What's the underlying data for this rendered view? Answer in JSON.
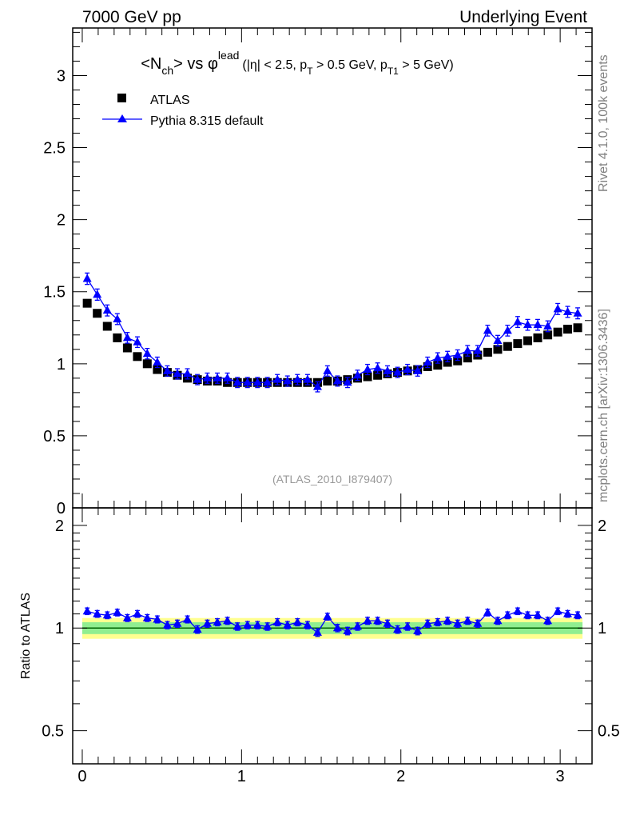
{
  "header": {
    "left": "7000 GeV pp",
    "right": "Underlying Event"
  },
  "side_text": {
    "rivet": "Rivet 4.1.0,  100k events",
    "mcplots": "mcplots.cern.ch [arXiv:1306.3436]"
  },
  "analysis_tag": "(ATLAS_2010_I879407)",
  "colors": {
    "pythia": "#0000ff",
    "atlas": "#000000",
    "band_stat": "#90ee90",
    "band_syst": "#ffff90",
    "ratio_line": "#006400"
  },
  "chart_data": [
    {
      "type": "scatter",
      "panel": "main",
      "title": {
        "lhs": "<N",
        "sub1": "ch",
        "mid": "> vs ",
        "phi": "φ",
        "sup": "lead",
        "cuts": "(|η| < 2.5, p",
        "sub2": "T",
        "cut2": " > 0.5 GeV, p",
        "sub3": "T1",
        "cut3": " > 5 GeV)"
      },
      "legend": [
        {
          "label": "ATLAS",
          "marker": "square"
        },
        {
          "label": "Pythia 8.315 default",
          "marker": "triangle-line"
        }
      ],
      "legend_position": "top-left",
      "xlim": [
        -0.06,
        3.2
      ],
      "ylim": [
        0,
        3.33
      ],
      "yticks": [
        0,
        0.5,
        1,
        1.5,
        2,
        2.5,
        3
      ],
      "ytick_labels": [
        "0",
        "0.5",
        "1",
        "1.5",
        "2",
        "2.5",
        "3"
      ],
      "x": [
        0.031,
        0.094,
        0.157,
        0.22,
        0.283,
        0.346,
        0.408,
        0.471,
        0.534,
        0.597,
        0.66,
        0.723,
        0.785,
        0.848,
        0.911,
        0.974,
        1.037,
        1.1,
        1.162,
        1.225,
        1.288,
        1.351,
        1.414,
        1.477,
        1.539,
        1.602,
        1.665,
        1.728,
        1.791,
        1.854,
        1.916,
        1.979,
        2.042,
        2.105,
        2.168,
        2.231,
        2.293,
        2.356,
        2.419,
        2.482,
        2.545,
        2.608,
        2.67,
        2.733,
        2.796,
        2.859,
        2.922,
        2.985,
        3.047,
        3.11
      ],
      "series": [
        {
          "name": "ATLAS",
          "values": [
            1.42,
            1.35,
            1.26,
            1.18,
            1.11,
            1.05,
            1.0,
            0.96,
            0.94,
            0.92,
            0.9,
            0.89,
            0.88,
            0.88,
            0.87,
            0.87,
            0.87,
            0.87,
            0.87,
            0.87,
            0.87,
            0.87,
            0.87,
            0.87,
            0.88,
            0.88,
            0.89,
            0.9,
            0.91,
            0.92,
            0.93,
            0.94,
            0.95,
            0.96,
            0.98,
            0.99,
            1.01,
            1.02,
            1.04,
            1.06,
            1.08,
            1.1,
            1.12,
            1.14,
            1.16,
            1.18,
            1.2,
            1.22,
            1.24,
            1.25
          ]
        },
        {
          "name": "Pythia 8.315 default",
          "values": [
            1.59,
            1.48,
            1.37,
            1.31,
            1.18,
            1.15,
            1.07,
            1.01,
            0.95,
            0.93,
            0.93,
            0.89,
            0.9,
            0.9,
            0.9,
            0.87,
            0.87,
            0.87,
            0.87,
            0.89,
            0.88,
            0.89,
            0.89,
            0.84,
            0.95,
            0.88,
            0.87,
            0.92,
            0.96,
            0.97,
            0.95,
            0.94,
            0.96,
            0.95,
            1.01,
            1.04,
            1.05,
            1.06,
            1.09,
            1.09,
            1.23,
            1.16,
            1.23,
            1.29,
            1.27,
            1.27,
            1.26,
            1.38,
            1.36,
            1.35
          ]
        }
      ]
    },
    {
      "type": "scatter",
      "panel": "ratio",
      "ylabel": "Ratio to ATLAS",
      "ylim": [
        0.4,
        2.25
      ],
      "yticks": [
        0.5,
        1,
        2
      ],
      "ytick_labels": [
        "0.5",
        "1",
        "2"
      ],
      "xticks": [
        0,
        1,
        2,
        3
      ],
      "xtick_labels": [
        "0",
        "1",
        "2",
        "3"
      ],
      "reference": 1,
      "band_stat": 0.04,
      "band_syst": 0.07,
      "series": [
        {
          "name": "Pythia 8.315 default / ATLAS",
          "values": [
            1.12,
            1.1,
            1.09,
            1.11,
            1.07,
            1.1,
            1.07,
            1.06,
            1.02,
            1.03,
            1.06,
            0.99,
            1.03,
            1.04,
            1.05,
            1.01,
            1.02,
            1.02,
            1.01,
            1.04,
            1.02,
            1.04,
            1.02,
            0.97,
            1.08,
            1.0,
            0.98,
            1.01,
            1.05,
            1.05,
            1.03,
            0.99,
            1.01,
            0.98,
            1.03,
            1.04,
            1.05,
            1.03,
            1.05,
            1.03,
            1.11,
            1.05,
            1.09,
            1.12,
            1.09,
            1.09,
            1.05,
            1.12,
            1.1,
            1.09
          ]
        }
      ]
    }
  ]
}
